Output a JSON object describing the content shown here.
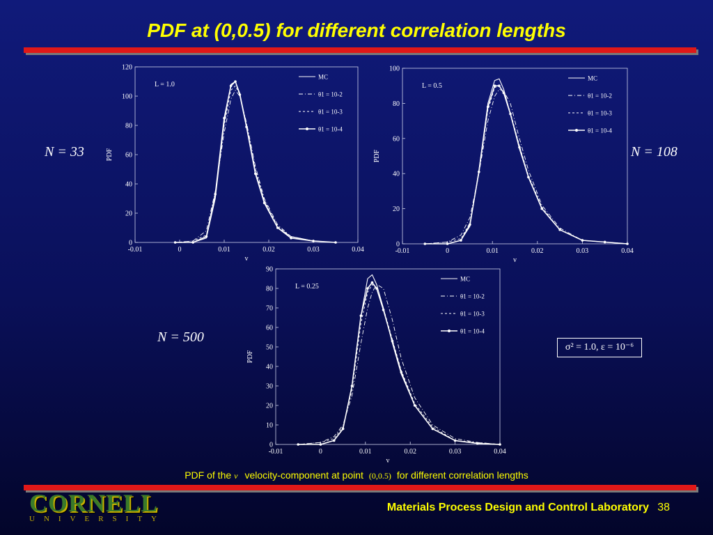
{
  "slide": {
    "title": "PDF at (0,0.5) for different correlation lengths",
    "n_labels": [
      "N = 33",
      "N = 108",
      "N = 500"
    ],
    "sigma_box": "σ² = 1.0, ε = 10⁻⁶",
    "caption": {
      "part1": "PDF of the",
      "v": "v",
      "part2": "velocity-component at point",
      "point": "(0,0.5)",
      "part3": "for different correlation lengths"
    },
    "footer": "Materials Process Design and Control Laboratory",
    "page_number": "38",
    "logo": {
      "name": "CORNELL",
      "sub": "UNIVERSITY"
    }
  },
  "colors": {
    "background": "#0a105a",
    "title": "#ffff00",
    "bar": "#e01818",
    "curves": "#ffffff"
  },
  "chart_data": [
    {
      "type": "line",
      "annotation": "L = 1.0",
      "xlabel": "v",
      "ylabel": "PDF",
      "xlim": [
        -0.01,
        0.04
      ],
      "ylim": [
        0,
        120
      ],
      "xticks": [
        -0.01,
        0,
        0.01,
        0.02,
        0.03,
        0.04
      ],
      "xticklabels": [
        "-0.01",
        "0",
        "0.01",
        "0.02",
        "0.03",
        "0.04"
      ],
      "yticks": [
        0,
        20,
        40,
        60,
        80,
        100,
        120
      ],
      "legend": [
        "MC",
        "θ1 = 10-2",
        "θ1 = 10-3",
        "θ1 = 10-4"
      ],
      "series": [
        {
          "name": "MC",
          "x": [
            -0.001,
            0.003,
            0.006,
            0.008,
            0.01,
            0.0115,
            0.0125,
            0.0135,
            0.015,
            0.017,
            0.019,
            0.022,
            0.025,
            0.03,
            0.035
          ],
          "y": [
            0,
            0,
            3,
            30,
            82,
            108,
            110,
            102,
            80,
            48,
            28,
            10,
            4,
            1,
            0
          ]
        },
        {
          "name": "θ1 = 10-2",
          "x": [
            -0.001,
            0.003,
            0.006,
            0.008,
            0.01,
            0.0115,
            0.0125,
            0.0135,
            0.015,
            0.017,
            0.019,
            0.022,
            0.025,
            0.03,
            0.035
          ],
          "y": [
            0,
            1,
            8,
            35,
            75,
            98,
            104,
            100,
            82,
            52,
            30,
            12,
            4,
            1,
            0
          ]
        },
        {
          "name": "θ1 = 10-3",
          "x": [
            -0.001,
            0.003,
            0.006,
            0.008,
            0.01,
            0.0115,
            0.0125,
            0.0135,
            0.015,
            0.017,
            0.019,
            0.022,
            0.025,
            0.03,
            0.035
          ],
          "y": [
            0,
            1,
            5,
            32,
            80,
            104,
            107,
            101,
            81,
            50,
            29,
            11,
            4,
            1,
            0
          ]
        },
        {
          "name": "θ1 = 10-4",
          "x": [
            -0.001,
            0.003,
            0.006,
            0.008,
            0.01,
            0.0115,
            0.0125,
            0.0135,
            0.015,
            0.017,
            0.019,
            0.022,
            0.025,
            0.03,
            0.035
          ],
          "y": [
            0,
            0,
            4,
            33,
            85,
            107,
            110,
            101,
            79,
            47,
            27,
            10,
            3,
            1,
            0
          ]
        }
      ]
    },
    {
      "type": "line",
      "annotation": "L = 0.5",
      "xlabel": "v",
      "ylabel": "PDF",
      "xlim": [
        -0.01,
        0.04
      ],
      "ylim": [
        0,
        100
      ],
      "xticks": [
        -0.01,
        0,
        0.01,
        0.02,
        0.03,
        0.04
      ],
      "xticklabels": [
        "-0.01",
        "0",
        "0.01",
        "0.02",
        "0.03",
        "0.04"
      ],
      "yticks": [
        0,
        20,
        40,
        60,
        80,
        100
      ],
      "legend": [
        "MC",
        "θ1 = 10-2",
        "θ1 = 10-3",
        "θ1 = 10-4"
      ],
      "series": [
        {
          "name": "MC",
          "x": [
            -0.005,
            0.0,
            0.003,
            0.005,
            0.007,
            0.009,
            0.0105,
            0.0115,
            0.0125,
            0.014,
            0.016,
            0.018,
            0.021,
            0.025,
            0.03,
            0.035,
            0.04
          ],
          "y": [
            0,
            0,
            2,
            10,
            42,
            80,
            93,
            94,
            88,
            74,
            54,
            38,
            20,
            8,
            2,
            1,
            0
          ]
        },
        {
          "name": "θ1 = 10-2",
          "x": [
            -0.005,
            0.0,
            0.003,
            0.005,
            0.007,
            0.009,
            0.0105,
            0.0115,
            0.0125,
            0.014,
            0.016,
            0.018,
            0.021,
            0.025,
            0.03,
            0.035,
            0.04
          ],
          "y": [
            0,
            1,
            5,
            15,
            40,
            70,
            84,
            88,
            87,
            80,
            60,
            42,
            22,
            9,
            2,
            1,
            0
          ]
        },
        {
          "name": "θ1 = 10-3",
          "x": [
            -0.005,
            0.0,
            0.003,
            0.005,
            0.007,
            0.009,
            0.0105,
            0.0115,
            0.0125,
            0.014,
            0.016,
            0.018,
            0.021,
            0.025,
            0.03,
            0.035,
            0.04
          ],
          "y": [
            0,
            1,
            3,
            12,
            40,
            76,
            89,
            90,
            86,
            75,
            56,
            39,
            21,
            8,
            2,
            1,
            0
          ]
        },
        {
          "name": "θ1 = 10-4",
          "x": [
            -0.005,
            0.0,
            0.003,
            0.005,
            0.007,
            0.009,
            0.0105,
            0.0115,
            0.0125,
            0.014,
            0.016,
            0.018,
            0.021,
            0.025,
            0.03,
            0.035,
            0.04
          ],
          "y": [
            0,
            0,
            2,
            11,
            41,
            78,
            90,
            90,
            86,
            74,
            55,
            38,
            20,
            8,
            2,
            1,
            0
          ]
        }
      ]
    },
    {
      "type": "line",
      "annotation": "L = 0.25",
      "xlabel": "v",
      "ylabel": "PDF",
      "xlim": [
        -0.01,
        0.04
      ],
      "ylim": [
        0,
        90
      ],
      "xticks": [
        -0.01,
        0,
        0.01,
        0.02,
        0.03,
        0.04
      ],
      "xticklabels": [
        "-0.01",
        "0",
        "0.01",
        "0.02",
        "0.03",
        "0.04"
      ],
      "yticks": [
        0,
        10,
        20,
        30,
        40,
        50,
        60,
        70,
        80,
        90
      ],
      "legend": [
        "MC",
        "θ1 = 10-2",
        "θ1 = 10-3",
        "θ1 = 10-4"
      ],
      "series": [
        {
          "name": "MC",
          "x": [
            -0.005,
            0.0,
            0.003,
            0.005,
            0.007,
            0.009,
            0.0105,
            0.0115,
            0.0125,
            0.014,
            0.016,
            0.018,
            0.021,
            0.025,
            0.03,
            0.035,
            0.04
          ],
          "y": [
            0,
            0,
            2,
            8,
            30,
            66,
            85,
            87,
            82,
            70,
            52,
            36,
            20,
            8,
            2,
            0.5,
            0
          ]
        },
        {
          "name": "θ1 = 10-2",
          "x": [
            -0.005,
            0.0,
            0.003,
            0.005,
            0.007,
            0.009,
            0.0105,
            0.0115,
            0.0125,
            0.014,
            0.016,
            0.018,
            0.021,
            0.025,
            0.03,
            0.035,
            0.04
          ],
          "y": [
            0,
            1,
            4,
            10,
            25,
            52,
            70,
            78,
            82,
            80,
            64,
            44,
            24,
            10,
            3,
            1,
            0
          ]
        },
        {
          "name": "θ1 = 10-3",
          "x": [
            -0.005,
            0.0,
            0.003,
            0.005,
            0.007,
            0.009,
            0.0105,
            0.0115,
            0.0125,
            0.014,
            0.016,
            0.018,
            0.021,
            0.025,
            0.03,
            0.035,
            0.04
          ],
          "y": [
            0,
            1,
            3,
            9,
            28,
            62,
            78,
            82,
            80,
            70,
            54,
            38,
            21,
            9,
            2,
            1,
            0
          ]
        },
        {
          "name": "θ1 = 10-4",
          "x": [
            -0.005,
            0.0,
            0.003,
            0.005,
            0.007,
            0.009,
            0.0105,
            0.0115,
            0.0125,
            0.014,
            0.016,
            0.018,
            0.021,
            0.025,
            0.03,
            0.035,
            0.04
          ],
          "y": [
            0,
            0,
            2,
            8,
            30,
            66,
            80,
            83,
            80,
            69,
            53,
            37,
            20,
            8,
            2,
            0.5,
            0
          ]
        }
      ]
    }
  ]
}
